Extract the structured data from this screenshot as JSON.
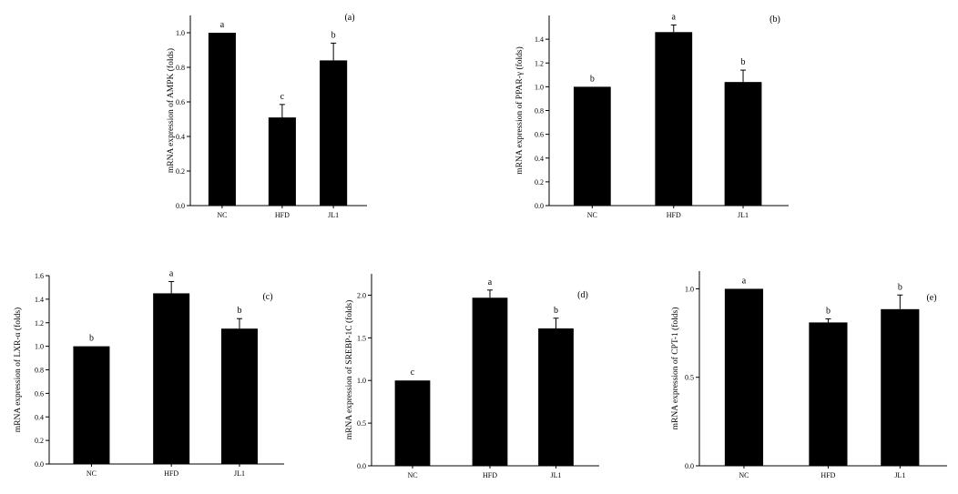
{
  "chart_data": [
    {
      "type": "bar",
      "panel": "(a)",
      "categories": [
        "NC",
        "HFD",
        "JL1"
      ],
      "values": [
        1.0,
        0.51,
        0.84
      ],
      "errors": [
        0.0,
        0.075,
        0.1
      ],
      "significance": [
        "a",
        "c",
        "b"
      ],
      "ylabel": "mRNA expression of AMPK (folds)",
      "ylim": [
        0,
        1.1
      ],
      "yticks": [
        0.0,
        0.2,
        0.4,
        0.6,
        0.8,
        1.0
      ],
      "ytick_labels": [
        "0.0",
        "0.2",
        "0.4",
        "0.6",
        "0.8",
        "1.0"
      ]
    },
    {
      "type": "bar",
      "panel": "(b)",
      "categories": [
        "NC",
        "HFD",
        "JL1"
      ],
      "values": [
        1.0,
        1.46,
        1.04
      ],
      "errors": [
        0.0,
        0.06,
        0.1
      ],
      "significance": [
        "b",
        "a",
        "b"
      ],
      "ylabel": "mRNA expression of  PPAR-γ (folds)",
      "ylim": [
        0,
        1.6
      ],
      "yticks": [
        0.0,
        0.2,
        0.4,
        0.6,
        0.8,
        1.0,
        1.2,
        1.4
      ],
      "ytick_labels": [
        "0.0",
        "0.2",
        "0.4",
        "0.6",
        "0.8",
        "1.0",
        "1.2",
        "1.4"
      ]
    },
    {
      "type": "bar",
      "panel": "(c)",
      "categories": [
        "NC",
        "HFD",
        "JL1"
      ],
      "values": [
        1.0,
        1.45,
        1.15
      ],
      "errors": [
        0.0,
        0.1,
        0.085
      ],
      "significance": [
        "b",
        "a",
        "b"
      ],
      "ylabel": "mRNA expression of  LXR-α (folds)",
      "ylim": [
        0,
        1.6
      ],
      "yticks": [
        0.0,
        0.2,
        0.4,
        0.6,
        0.8,
        1.0,
        1.2,
        1.4,
        1.6
      ],
      "ytick_labels": [
        "0.0",
        "0.2",
        "0.4",
        "0.6",
        "0.8",
        "1.0",
        "1.2",
        "1.4",
        "1.6"
      ]
    },
    {
      "type": "bar",
      "panel": "(d)",
      "categories": [
        "NC",
        "HFD",
        "JL1"
      ],
      "values": [
        1.0,
        1.97,
        1.61
      ],
      "errors": [
        0.0,
        0.09,
        0.12
      ],
      "significance": [
        "c",
        "a",
        "b"
      ],
      "ylabel": "mRNA expression of SREBP-1C (folds)",
      "ylim": [
        0,
        2.25
      ],
      "yticks": [
        0.0,
        0.5,
        1.0,
        1.5,
        2.0
      ],
      "ytick_labels": [
        "0.0",
        "0.5",
        "1.0",
        "1.5",
        "2.0"
      ]
    },
    {
      "type": "bar",
      "panel": "(e)",
      "categories": [
        "NC",
        "HFD",
        "JL1"
      ],
      "values": [
        1.0,
        0.81,
        0.885
      ],
      "errors": [
        0.0,
        0.02,
        0.08
      ],
      "significance": [
        "a",
        "b",
        "b"
      ],
      "ylabel": "mRNA expression of CPT-1 (folds)",
      "ylim": [
        0,
        1.1
      ],
      "yticks": [
        0.0,
        0.5,
        1.0
      ],
      "ytick_labels": [
        "0.0",
        "0.5",
        "1.0"
      ]
    }
  ]
}
